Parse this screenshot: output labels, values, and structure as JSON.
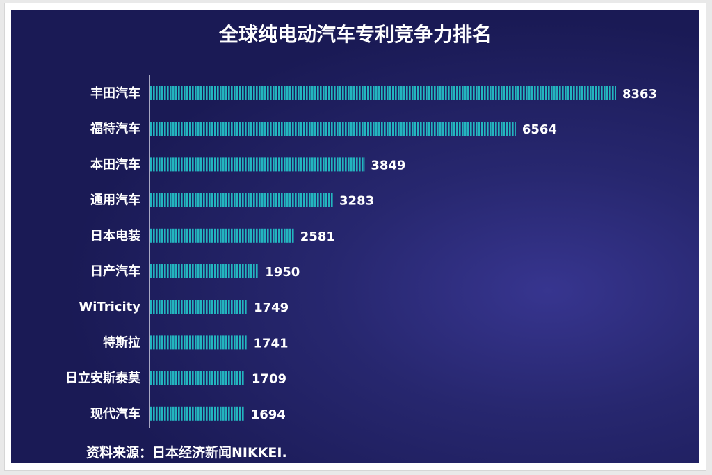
{
  "chart_data": {
    "type": "bar",
    "orientation": "horizontal",
    "title": "全球纯电动汽车专利竞争力排名",
    "categories": [
      "丰田汽车",
      "福特汽车",
      "本田汽车",
      "通用汽车",
      "日本电装",
      "日产汽车",
      "WiTricity",
      "特斯拉",
      "日立安斯泰莫",
      "现代汽车"
    ],
    "values": [
      8363,
      6564,
      3849,
      3283,
      2581,
      1950,
      1749,
      1741,
      1709,
      1694
    ],
    "value_labels": [
      "8363",
      "6564",
      "3849",
      "3283",
      "2581",
      "1950",
      "1749",
      "1741",
      "1709",
      "1694"
    ],
    "xlim": [
      0,
      8363
    ],
    "grid": false,
    "legend": "none",
    "source": "资料来源：日本经济新闻NIKKEI.",
    "colors": {
      "background": "#222266",
      "bar": "#23b5bf",
      "text": "#ffffff"
    }
  }
}
